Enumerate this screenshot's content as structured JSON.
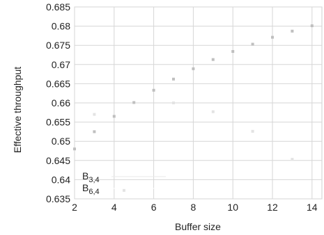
{
  "chart_data": {
    "type": "scatter",
    "title": "",
    "xlabel": "Buffer size",
    "ylabel": "Effective throughput",
    "xlim": [
      2,
      14.5
    ],
    "ylim": [
      0.635,
      0.685
    ],
    "xticks": [
      "2",
      "4",
      "6",
      "8",
      "10",
      "12",
      "14"
    ],
    "yticks": [
      "0.635",
      "0.64",
      "0.645",
      "0.65",
      "0.655",
      "0.66",
      "0.665",
      "0.67",
      "0.675",
      "0.68",
      "0.685"
    ],
    "grid": true,
    "legend_position": "bottom-left",
    "series": [
      {
        "name": "B",
        "sub": "3,4",
        "color": "#bfbfbf",
        "x": [
          2,
          3,
          4,
          5,
          6,
          7,
          8,
          9,
          10,
          11,
          12,
          13,
          14
        ],
        "y": [
          0.648,
          0.6525,
          0.6565,
          0.6601,
          0.6633,
          0.6662,
          0.6689,
          0.6713,
          0.6734,
          0.6753,
          0.6771,
          0.6787,
          0.6801
        ]
      },
      {
        "name": "B",
        "sub": "6,4",
        "color": "#e3e3e3",
        "x": [
          3,
          4.5,
          7,
          9,
          11,
          13
        ],
        "y": [
          0.657,
          0.6372,
          0.66,
          0.6577,
          0.6526,
          0.6453
        ]
      }
    ]
  }
}
